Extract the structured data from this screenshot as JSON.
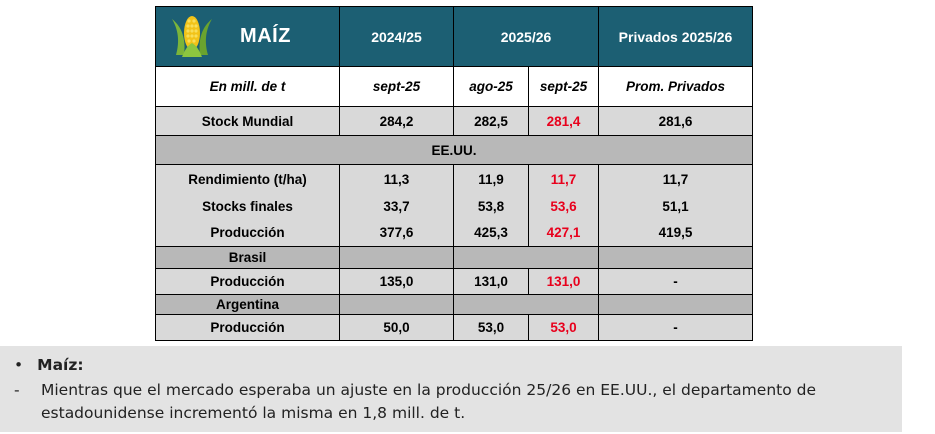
{
  "table": {
    "title": "MAÍZ",
    "col_groups": [
      "2024/25",
      "2025/26",
      "Privados 2025/26"
    ],
    "unit_label": "En mill. de t",
    "sub_headers": [
      "sept-25",
      "ago-25",
      "sept-25",
      "Prom. Privados"
    ],
    "rows": [
      {
        "label": "Stock Mundial",
        "values": [
          "284,2",
          "282,5",
          "281,4",
          "281,6"
        ]
      },
      {
        "section": "EE.UU."
      },
      {
        "label": "Rendimiento (t/ha)",
        "values": [
          "11,3",
          "11,9",
          "11,7",
          "11,7"
        ]
      },
      {
        "label": "Stocks finales",
        "values": [
          "33,7",
          "53,8",
          "53,6",
          "51,1"
        ]
      },
      {
        "label": "Producción",
        "values": [
          "377,6",
          "425,3",
          "427,1",
          "419,5"
        ]
      },
      {
        "section": "Brasil"
      },
      {
        "label": "Producción",
        "values": [
          "135,0",
          "131,0",
          "131,0",
          "-"
        ]
      },
      {
        "section": "Argentina"
      },
      {
        "label": "Producción",
        "values": [
          "50,0",
          "53,0",
          "53,0",
          "-"
        ]
      }
    ]
  },
  "notes": {
    "bullet_symbol": "•",
    "bullet_title": "Maíz:",
    "dash_symbol": "-",
    "text": "Mientras que el mercado esperaba un ajuste en la producción 25/26 en EE.UU., el departamento de estadounidense incrementó la misma en 1,8 mill. de t."
  },
  "colors": {
    "header_bg": "#1c5f73",
    "highlight_red": "#e8001c",
    "row_gray": "#d9d9d9",
    "section_gray": "#b8b8b8"
  },
  "icons": [
    "corn-icon"
  ]
}
